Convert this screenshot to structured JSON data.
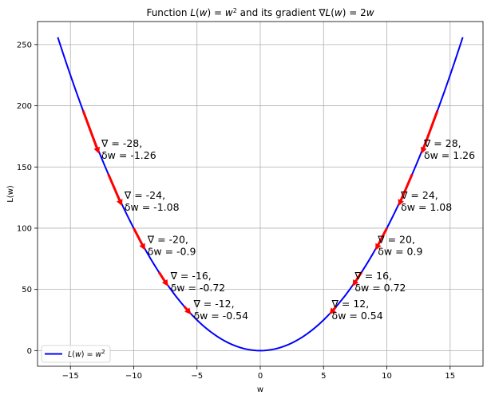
{
  "chart_data": {
    "type": "line",
    "title": "Function L(w) = w² and its gradient ∇L(w) = 2w",
    "xlabel": "w",
    "ylabel": "L(w)",
    "xlim": [
      -17.6,
      17.6
    ],
    "ylim": [
      -12.8,
      268.8
    ],
    "x_ticks": [
      -15,
      -10,
      -5,
      0,
      5,
      10,
      15
    ],
    "y_ticks": [
      0,
      50,
      100,
      150,
      200,
      250
    ],
    "grid": true,
    "legend_position": "lower-left",
    "series": [
      {
        "name": "L(w) = w²",
        "function": "w^2",
        "x_range": [
          -16,
          16
        ],
        "color": "#0000ff"
      }
    ],
    "gradient_arrows": [
      {
        "w": -14,
        "gradient": "-28",
        "delta_w": "-1.26",
        "color": "#ff0000"
      },
      {
        "w": -12,
        "gradient": "-24",
        "delta_w": "-1.08",
        "color": "#ff0000"
      },
      {
        "w": -10,
        "gradient": "-20",
        "delta_w": "-0.9",
        "color": "#ff0000"
      },
      {
        "w": -8,
        "gradient": "-16",
        "delta_w": "-0.72",
        "color": "#ff0000"
      },
      {
        "w": -6,
        "gradient": "-12",
        "delta_w": "-0.54",
        "color": "#ff0000"
      },
      {
        "w": 6,
        "gradient": "12",
        "delta_w": "0.54",
        "color": "#ff0000"
      },
      {
        "w": 8,
        "gradient": "16",
        "delta_w": "0.72",
        "color": "#ff0000"
      },
      {
        "w": 10,
        "gradient": "20",
        "delta_w": "0.9",
        "color": "#ff0000"
      },
      {
        "w": 12,
        "gradient": "24",
        "delta_w": "1.08",
        "color": "#ff0000"
      },
      {
        "w": 14,
        "gradient": "28",
        "delta_w": "1.26",
        "color": "#ff0000"
      }
    ],
    "annotation_prefix_grad": "∇ = ",
    "annotation_prefix_delta": "δw = "
  }
}
